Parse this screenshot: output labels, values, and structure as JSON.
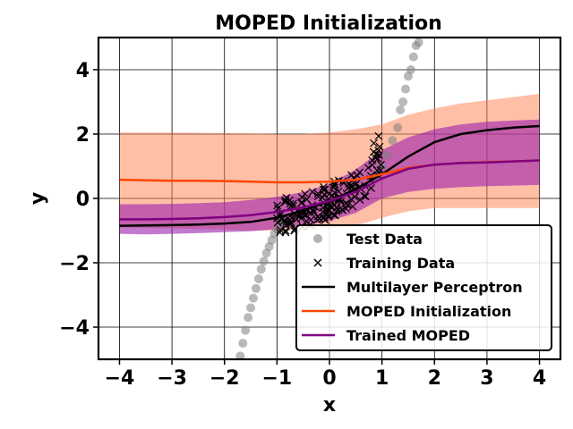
{
  "chart_data": {
    "type": "line",
    "title": "MOPED Initialization",
    "xlabel": "x",
    "ylabel": "y",
    "xlim": [
      -4.4,
      4.4
    ],
    "ylim": [
      -5,
      5
    ],
    "grid": true,
    "legend_position": "lower-right",
    "x_ticks": [
      -4,
      -3,
      -2,
      -1,
      0,
      1,
      2,
      3,
      4
    ],
    "x_tick_labels": [
      "−4",
      "−3",
      "−2",
      "−1",
      "0",
      "1",
      "2",
      "3",
      "4"
    ],
    "y_ticks": [
      -4,
      -2,
      0,
      2,
      4
    ],
    "y_tick_labels": [
      "−4",
      "−2",
      "0",
      "2",
      "4"
    ],
    "legend": [
      {
        "label": "Test Data",
        "marker": "circle",
        "color": "#808080"
      },
      {
        "label": "Training Data",
        "marker": "x",
        "color": "#000000"
      },
      {
        "label": "Multilayer Perceptron",
        "marker": "line",
        "color": "#000000"
      },
      {
        "label": "MOPED Initialization",
        "marker": "line",
        "color": "#ff4500"
      },
      {
        "label": "Trained MOPED",
        "marker": "line",
        "color": "#800080"
      }
    ],
    "series": [
      {
        "name": "Multilayer Perceptron",
        "color": "#000000",
        "x": [
          -4,
          -3.5,
          -3,
          -2.5,
          -2,
          -1.5,
          -1,
          -0.5,
          0,
          0.5,
          1,
          1.5,
          2,
          2.5,
          3,
          3.5,
          4
        ],
        "y": [
          -0.85,
          -0.84,
          -0.83,
          -0.81,
          -0.78,
          -0.73,
          -0.6,
          -0.38,
          -0.08,
          0.28,
          0.75,
          1.3,
          1.75,
          2.0,
          2.12,
          2.2,
          2.25
        ]
      },
      {
        "name": "MOPED Initialization",
        "color": "#ff4500",
        "x": [
          -4,
          -3.5,
          -3,
          -2.5,
          -2,
          -1.5,
          -1,
          -0.5,
          0,
          0.5,
          1,
          1.5,
          2,
          2.5,
          3,
          3.5,
          4
        ],
        "y": [
          0.58,
          0.56,
          0.55,
          0.55,
          0.54,
          0.52,
          0.5,
          0.5,
          0.52,
          0.58,
          0.75,
          0.95,
          1.05,
          1.1,
          1.13,
          1.15,
          1.18
        ],
        "band_lower": [
          -0.9,
          -0.92,
          -0.93,
          -0.95,
          -0.97,
          -1.0,
          -1.0,
          -0.98,
          -0.95,
          -0.85,
          -0.6,
          -0.4,
          -0.3,
          -0.3,
          -0.3,
          -0.3,
          -0.3
        ],
        "band_upper": [
          2.05,
          2.05,
          2.05,
          2.04,
          2.03,
          2.02,
          2.0,
          2.0,
          2.05,
          2.15,
          2.3,
          2.6,
          2.8,
          2.95,
          3.05,
          3.15,
          3.25
        ]
      },
      {
        "name": "Trained MOPED",
        "color": "#800080",
        "x": [
          -4,
          -3.5,
          -3,
          -2.5,
          -2,
          -1.5,
          -1,
          -0.5,
          0,
          0.5,
          1,
          1.5,
          2,
          2.5,
          3,
          3.5,
          4
        ],
        "y": [
          -0.65,
          -0.65,
          -0.64,
          -0.62,
          -0.58,
          -0.52,
          -0.42,
          -0.28,
          -0.08,
          0.2,
          0.62,
          0.92,
          1.05,
          1.1,
          1.12,
          1.15,
          1.18
        ],
        "band_lower": [
          -1.1,
          -1.12,
          -1.1,
          -1.08,
          -1.05,
          -1.02,
          -0.95,
          -0.85,
          -0.7,
          -0.45,
          0.0,
          0.2,
          0.3,
          0.35,
          0.38,
          0.4,
          0.42
        ],
        "band_upper": [
          -0.18,
          -0.18,
          -0.17,
          -0.15,
          -0.12,
          -0.05,
          0.05,
          0.2,
          0.45,
          0.9,
          1.5,
          1.9,
          2.15,
          2.3,
          2.38,
          2.42,
          2.45
        ]
      },
      {
        "name": "Test Data",
        "color": "#808080",
        "x": [
          -1.7,
          -1.65,
          -1.6,
          -1.55,
          -1.5,
          -1.45,
          -1.4,
          -1.35,
          -1.3,
          -1.25,
          -1.2,
          -1.15,
          -1.1,
          -1.05,
          -1.0,
          -0.95,
          -0.9,
          0.9,
          1.0,
          1.1,
          1.2,
          1.3,
          1.35,
          1.4,
          1.45,
          1.5,
          1.55,
          1.6,
          1.65,
          1.7
        ],
        "y": [
          -4.9,
          -4.5,
          -4.1,
          -3.7,
          -3.4,
          -3.1,
          -2.8,
          -2.5,
          -2.2,
          -1.95,
          -1.7,
          -1.5,
          -1.3,
          -1.1,
          -0.95,
          -0.8,
          -0.7,
          0.75,
          1.0,
          1.35,
          1.8,
          2.2,
          2.75,
          3.0,
          3.4,
          3.8,
          4.0,
          4.4,
          4.75,
          4.85
        ]
      }
    ]
  }
}
